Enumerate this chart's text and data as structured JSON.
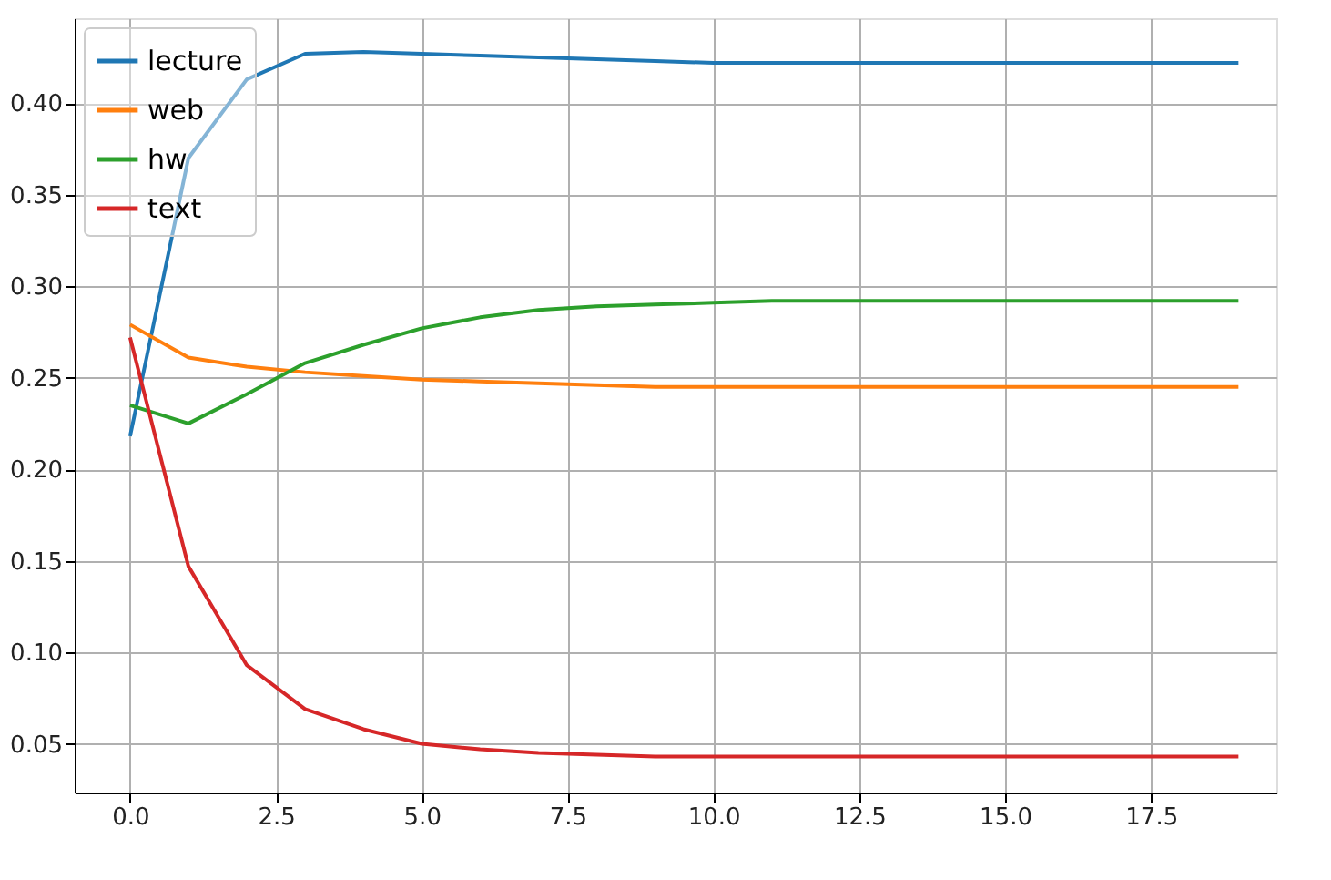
{
  "chart_data": {
    "type": "line",
    "x": [
      0,
      1,
      2,
      3,
      4,
      5,
      6,
      7,
      8,
      9,
      10,
      11,
      12,
      13,
      14,
      15,
      16,
      17,
      18,
      19
    ],
    "series": [
      {
        "name": "lecture",
        "color": "#1f77b4",
        "values": [
          0.218,
          0.37,
          0.413,
          0.427,
          0.428,
          0.427,
          0.426,
          0.425,
          0.424,
          0.423,
          0.422,
          0.422,
          0.422,
          0.422,
          0.422,
          0.422,
          0.422,
          0.422,
          0.422,
          0.422
        ]
      },
      {
        "name": "web",
        "color": "#ff7f0e",
        "values": [
          0.279,
          0.261,
          0.256,
          0.253,
          0.251,
          0.249,
          0.248,
          0.247,
          0.246,
          0.245,
          0.245,
          0.245,
          0.245,
          0.245,
          0.245,
          0.245,
          0.245,
          0.245,
          0.245,
          0.245
        ]
      },
      {
        "name": "hw",
        "color": "#2ca02c",
        "values": [
          0.235,
          0.225,
          0.241,
          0.258,
          0.268,
          0.277,
          0.283,
          0.287,
          0.289,
          0.29,
          0.291,
          0.292,
          0.292,
          0.292,
          0.292,
          0.292,
          0.292,
          0.292,
          0.292,
          0.292
        ]
      },
      {
        "name": "text",
        "color": "#d62728",
        "values": [
          0.272,
          0.147,
          0.093,
          0.069,
          0.058,
          0.05,
          0.047,
          0.045,
          0.044,
          0.043,
          0.043,
          0.043,
          0.043,
          0.043,
          0.043,
          0.043,
          0.043,
          0.043,
          0.043,
          0.043
        ]
      }
    ],
    "xlim": [
      -0.95,
      19.65
    ],
    "xticks": [
      {
        "value": 0,
        "label": "0.0"
      },
      {
        "value": 2.5,
        "label": "2.5"
      },
      {
        "value": 5,
        "label": "5.0"
      },
      {
        "value": 7.5,
        "label": "7.5"
      },
      {
        "value": 10,
        "label": "10.0"
      },
      {
        "value": 12.5,
        "label": "12.5"
      },
      {
        "value": 15,
        "label": "15.0"
      },
      {
        "value": 17.5,
        "label": "17.5"
      }
    ],
    "ylim": [
      0.0234,
      0.4464
    ],
    "yticks": [
      {
        "value": 0.05,
        "label": "0.05"
      },
      {
        "value": 0.1,
        "label": "0.10"
      },
      {
        "value": 0.15,
        "label": "0.15"
      },
      {
        "value": 0.2,
        "label": "0.20"
      },
      {
        "value": 0.25,
        "label": "0.25"
      },
      {
        "value": 0.3,
        "label": "0.30"
      },
      {
        "value": 0.35,
        "label": "0.35"
      },
      {
        "value": 0.4,
        "label": "0.40"
      }
    ],
    "grid": true,
    "legend": "top left"
  }
}
